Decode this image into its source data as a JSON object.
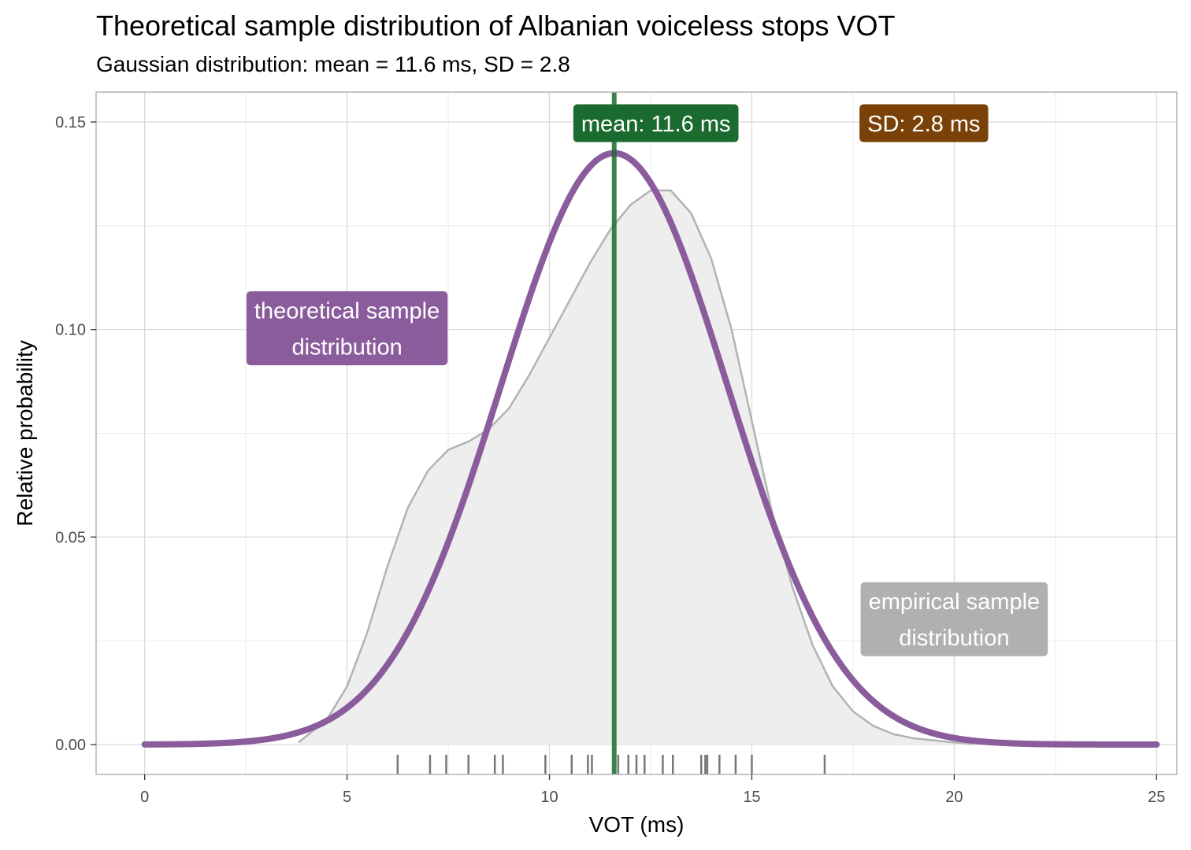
{
  "chart_data": {
    "type": "line",
    "title": "Theoretical sample distribution of Albanian voiceless stops VOT",
    "subtitle": "Gaussian distribution: mean = 11.6 ms, SD = 2.8",
    "xlabel": "VOT (ms)",
    "ylabel": "Relative probability",
    "xlim": [
      -1.2,
      25.5
    ],
    "ylim": [
      -0.0072,
      0.1572
    ],
    "x_ticks": [
      "0",
      "5",
      "10",
      "15",
      "20",
      "25"
    ],
    "x_tick_values": [
      0,
      5,
      10,
      15,
      20,
      25
    ],
    "y_ticks": [
      "0.00",
      "0.05",
      "0.10",
      "0.15"
    ],
    "y_tick_values": [
      0,
      0.05,
      0.1,
      0.15
    ],
    "grid": true,
    "mean": 11.6,
    "sd": 2.8,
    "series": [
      {
        "type": "density-area",
        "color": "#b3b3b3",
        "fill": "#eeeeee",
        "x": [
          3.8,
          4.5,
          5,
          5.5,
          6,
          6.5,
          7,
          7.5,
          8,
          8.5,
          9,
          9.5,
          10,
          10.5,
          11,
          11.5,
          12,
          12.5,
          13,
          13.5,
          14,
          14.5,
          15,
          15.5,
          16,
          16.5,
          17,
          17.5,
          18,
          18.5,
          19,
          19.5,
          20,
          20.5
        ],
        "y": [
          0.0005,
          0.006,
          0.014,
          0.027,
          0.043,
          0.057,
          0.066,
          0.071,
          0.073,
          0.076,
          0.081,
          0.089,
          0.098,
          0.107,
          0.116,
          0.124,
          0.13,
          0.1335,
          0.1335,
          0.128,
          0.117,
          0.1,
          0.078,
          0.056,
          0.038,
          0.024,
          0.014,
          0.008,
          0.0045,
          0.0025,
          0.0015,
          0.001,
          0.0005,
          0.0002
        ]
      },
      {
        "type": "gaussian",
        "color": "#8a5c9c",
        "mean": 11.6,
        "sd": 2.8,
        "x_range": [
          0,
          25
        ]
      }
    ],
    "rug": {
      "color": "#777777",
      "values": [
        6.25,
        7.05,
        7.45,
        8.0,
        8.65,
        8.85,
        9.9,
        10.55,
        10.95,
        11.05,
        11.7,
        11.95,
        12.15,
        12.35,
        12.8,
        13.05,
        13.75,
        13.85,
        13.9,
        14.2,
        14.6,
        15.0,
        16.8
      ]
    },
    "mean_line": {
      "x": 11.6,
      "color": "#1b6b30"
    },
    "annotations": {
      "mean": {
        "text": "mean: 11.6 ms",
        "x": 12.63,
        "y": 0.1497,
        "color": "#1b6b30"
      },
      "sd": {
        "text": "SD: 2.8 ms",
        "x": 19.25,
        "y": 0.1497,
        "color": "#7a4208"
      },
      "theoretical": {
        "lines": [
          "theoretical sample",
          "distribution"
        ],
        "x": 5.0,
        "y": 0.1003,
        "color": "#8a5c9c"
      },
      "empirical": {
        "lines": [
          "empirical sample",
          "distribution"
        ],
        "x": 20.0,
        "y": 0.0302,
        "color": "#b0b0b0"
      }
    }
  }
}
